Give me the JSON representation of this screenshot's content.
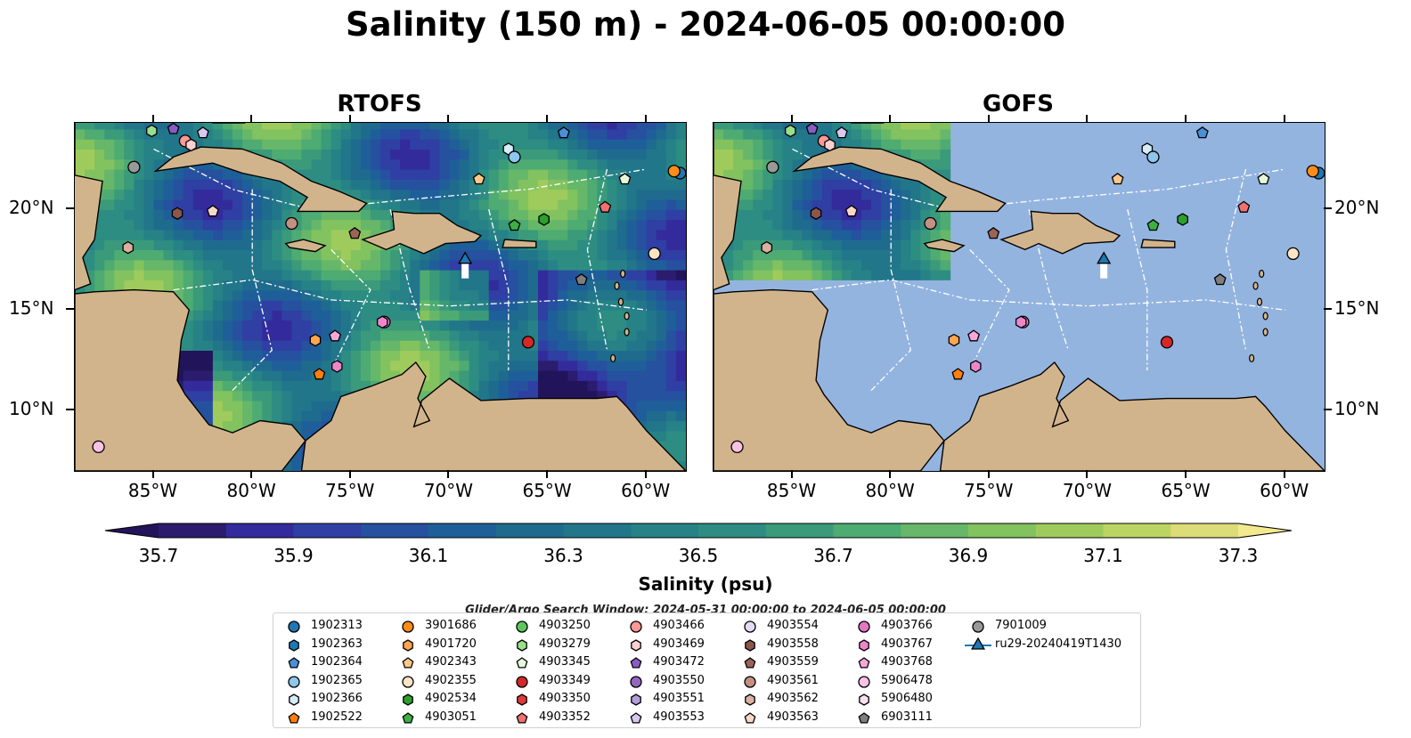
{
  "title": "Salinity (150 m) - 2024-06-05 00:00:00",
  "panels": [
    {
      "title": "RTOFS",
      "colored": "full"
    },
    {
      "title": "GOFS",
      "colored": "nw"
    }
  ],
  "lon_ticks": [
    "85°W",
    "80°W",
    "75°W",
    "70°W",
    "65°W",
    "60°W"
  ],
  "lat_ticks": [
    "20°N",
    "15°N",
    "10°N"
  ],
  "colorbar": {
    "label": "Salinity (psu)",
    "min": 35.7,
    "max": 37.3,
    "step": 0.1,
    "tick_labels": [
      "35.7",
      "35.9",
      "36.1",
      "36.3",
      "36.5",
      "36.7",
      "36.9",
      "37.1",
      "37.3"
    ],
    "colors": [
      "#2b1c6e",
      "#332b9c",
      "#2f3fa3",
      "#26519f",
      "#1f5f99",
      "#1f6b8e",
      "#22768a",
      "#268286",
      "#2d8d82",
      "#3a9a7a",
      "#4eab72",
      "#66b769",
      "#82c25f",
      "#9fcb5c",
      "#bcd562",
      "#dcdc78"
    ],
    "under_color": "#22145a",
    "over_color": "#f3e98f"
  },
  "search_window": "Glider/Argo Search Window: 2024-05-31 00:00:00 to 2024-06-05 00:00:00",
  "legend": {
    "items": [
      {
        "label": "1902313",
        "color": "#1f77b4",
        "marker": "circle"
      },
      {
        "label": "1902363",
        "color": "#1f77b4",
        "marker": "hexagon"
      },
      {
        "label": "1902364",
        "color": "#4a90d9",
        "marker": "pentagon"
      },
      {
        "label": "1902365",
        "color": "#8ec6ee",
        "marker": "circle"
      },
      {
        "label": "1902366",
        "color": "#d6ecfa",
        "marker": "hexagon"
      },
      {
        "label": "1902522",
        "color": "#ff7f0e",
        "marker": "pentagon"
      },
      {
        "label": "3901686",
        "color": "#ff8c1a",
        "marker": "circle"
      },
      {
        "label": "4901720",
        "color": "#ffa54f",
        "marker": "hexagon"
      },
      {
        "label": "4902343",
        "color": "#ffc88a",
        "marker": "pentagon"
      },
      {
        "label": "4902355",
        "color": "#ffe4c4",
        "marker": "circle"
      },
      {
        "label": "4902534",
        "color": "#2ca02c",
        "marker": "hexagon"
      },
      {
        "label": "4903051",
        "color": "#3cb043",
        "marker": "pentagon"
      },
      {
        "label": "4903250",
        "color": "#5cc85c",
        "marker": "circle"
      },
      {
        "label": "4903279",
        "color": "#98df8a",
        "marker": "hexagon"
      },
      {
        "label": "4903345",
        "color": "#e6f7dc",
        "marker": "pentagon"
      },
      {
        "label": "4903349",
        "color": "#d62728",
        "marker": "circle"
      },
      {
        "label": "4903350",
        "color": "#e0393a",
        "marker": "hexagon"
      },
      {
        "label": "4903352",
        "color": "#f07070",
        "marker": "pentagon"
      },
      {
        "label": "4903466",
        "color": "#ff9896",
        "marker": "circle"
      },
      {
        "label": "4903469",
        "color": "#ffd0cf",
        "marker": "hexagon"
      },
      {
        "label": "4903472",
        "color": "#8a5cc2",
        "marker": "pentagon"
      },
      {
        "label": "4903550",
        "color": "#9467bd",
        "marker": "circle"
      },
      {
        "label": "4903551",
        "color": "#b39ddb",
        "marker": "hexagon"
      },
      {
        "label": "4903553",
        "color": "#d9c8f0",
        "marker": "pentagon"
      },
      {
        "label": "4903554",
        "color": "#e6dbf7",
        "marker": "circle"
      },
      {
        "label": "4903558",
        "color": "#8c564b",
        "marker": "hexagon"
      },
      {
        "label": "4903559",
        "color": "#9a6457",
        "marker": "pentagon"
      },
      {
        "label": "4903561",
        "color": "#c49080",
        "marker": "circle"
      },
      {
        "label": "4903562",
        "color": "#dbb0a0",
        "marker": "hexagon"
      },
      {
        "label": "4903563",
        "color": "#f7d7c8",
        "marker": "pentagon"
      },
      {
        "label": "4903766",
        "color": "#e377c2",
        "marker": "circle"
      },
      {
        "label": "4903767",
        "color": "#ec88c9",
        "marker": "hexagon"
      },
      {
        "label": "4903768",
        "color": "#f7a8d8",
        "marker": "pentagon"
      },
      {
        "label": "5906478",
        "color": "#f9c1e3",
        "marker": "circle"
      },
      {
        "label": "5906480",
        "color": "#fde0f0",
        "marker": "hexagon"
      },
      {
        "label": "6903111",
        "color": "#7f7f7f",
        "marker": "pentagon"
      },
      {
        "label": "7901009",
        "color": "#999999",
        "marker": "circle"
      },
      {
        "label": "ru29-20240419T1430",
        "color": "#1f77b4",
        "marker": "triangle"
      }
    ]
  },
  "floats": [
    {
      "id": "1902313",
      "lon": -58.3,
      "lat": 21.8
    },
    {
      "id": "3901686",
      "lon": -58.6,
      "lat": 21.9
    },
    {
      "id": "1902364",
      "lon": -64.2,
      "lat": 23.8
    },
    {
      "id": "1902366",
      "lon": -67.0,
      "lat": 23.0
    },
    {
      "id": "1902365",
      "lon": -66.7,
      "lat": 22.6
    },
    {
      "id": "4903345",
      "lon": -61.1,
      "lat": 21.5
    },
    {
      "id": "4902343",
      "lon": -68.5,
      "lat": 21.5
    },
    {
      "id": "4903352",
      "lon": -62.1,
      "lat": 20.1
    },
    {
      "id": "4903051",
      "lon": -66.7,
      "lat": 19.2
    },
    {
      "id": "4902534",
      "lon": -65.2,
      "lat": 19.5
    },
    {
      "id": "4902355",
      "lon": -59.6,
      "lat": 17.8
    },
    {
      "id": "6903111",
      "lon": -63.3,
      "lat": 16.5
    },
    {
      "id": "4903349",
      "lon": -66.0,
      "lat": 13.4
    },
    {
      "id": "4903766",
      "lon": -73.3,
      "lat": 14.4
    },
    {
      "id": "4903767",
      "lon": -73.4,
      "lat": 14.4
    },
    {
      "id": "4903768",
      "lon": -75.8,
      "lat": 13.7
    },
    {
      "id": "4901720",
      "lon": -76.8,
      "lat": 13.5
    },
    {
      "id": "4903767",
      "lon": -75.7,
      "lat": 12.2
    },
    {
      "id": "1902522",
      "lon": -76.6,
      "lat": 11.8
    },
    {
      "id": "5906478",
      "lon": -87.8,
      "lat": 8.2
    },
    {
      "id": "4903561",
      "lon": -78.0,
      "lat": 19.3
    },
    {
      "id": "4903559",
      "lon": -74.8,
      "lat": 18.8
    },
    {
      "id": "4903558",
      "lon": -83.8,
      "lat": 19.8
    },
    {
      "id": "4903563",
      "lon": -82.0,
      "lat": 19.9
    },
    {
      "id": "4903562",
      "lon": -86.3,
      "lat": 18.1
    },
    {
      "id": "7901009",
      "lon": -86.0,
      "lat": 22.1
    },
    {
      "id": "4903279",
      "lon": -85.1,
      "lat": 23.9
    },
    {
      "id": "4903472",
      "lon": -84.0,
      "lat": 24.0
    },
    {
      "id": "4903553",
      "lon": -82.5,
      "lat": 23.8
    },
    {
      "id": "4903466",
      "lon": -83.4,
      "lat": 23.4
    },
    {
      "id": "4903469",
      "lon": -83.1,
      "lat": 23.2
    }
  ],
  "glider": {
    "id": "ru29-20240419T1430",
    "lon": -69.2,
    "lat": 17.5
  }
}
